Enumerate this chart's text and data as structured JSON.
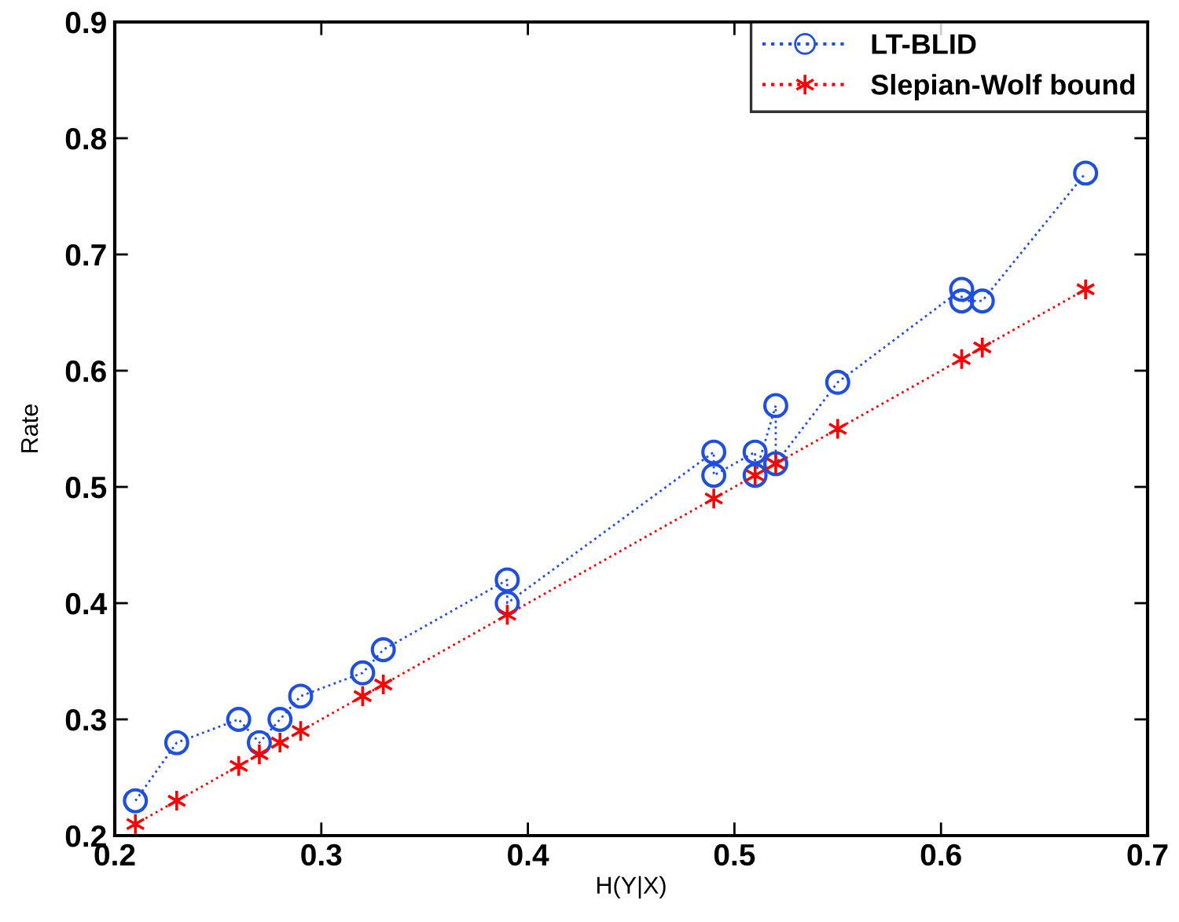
{
  "chart_data": {
    "type": "line",
    "xlabel": "H(Y|X)",
    "ylabel": "Rate",
    "xlim": [
      0.2,
      0.7
    ],
    "ylim": [
      0.2,
      0.9
    ],
    "xticks": [
      0.2,
      0.3,
      0.4,
      0.5,
      0.6,
      0.7
    ],
    "yticks": [
      0.2,
      0.3,
      0.4,
      0.5,
      0.6,
      0.7,
      0.8,
      0.9
    ],
    "grid": false,
    "legend": "top right",
    "line_style": "dotted",
    "series": [
      {
        "name": "LT-BLID",
        "color": "#1f4fe0",
        "marker": "circle",
        "x": [
          0.21,
          0.23,
          0.26,
          0.27,
          0.28,
          0.29,
          0.32,
          0.33,
          0.39,
          0.39,
          0.49,
          0.49,
          0.51,
          0.51,
          0.52,
          0.52,
          0.55,
          0.61,
          0.61,
          0.62,
          0.67
        ],
        "values": [
          0.23,
          0.28,
          0.3,
          0.28,
          0.3,
          0.32,
          0.34,
          0.36,
          0.42,
          0.4,
          0.53,
          0.51,
          0.53,
          0.51,
          0.57,
          0.52,
          0.59,
          0.67,
          0.66,
          0.66,
          0.77
        ]
      },
      {
        "name": "Slepian-Wolf bound",
        "color": "#ff0000",
        "marker": "cross",
        "x": [
          0.21,
          0.23,
          0.26,
          0.27,
          0.28,
          0.29,
          0.32,
          0.33,
          0.39,
          0.49,
          0.51,
          0.52,
          0.55,
          0.61,
          0.62,
          0.67
        ],
        "values": [
          0.21,
          0.23,
          0.26,
          0.27,
          0.28,
          0.29,
          0.32,
          0.33,
          0.39,
          0.49,
          0.51,
          0.52,
          0.55,
          0.61,
          0.62,
          0.67
        ]
      }
    ]
  }
}
